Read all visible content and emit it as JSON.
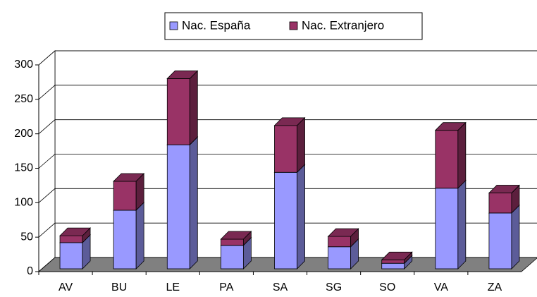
{
  "chart_data": {
    "type": "bar",
    "stacked": true,
    "three_d": true,
    "categories": [
      "AV",
      "BU",
      "LE",
      "PA",
      "SA",
      "SG",
      "SO",
      "VA",
      "ZA"
    ],
    "series": [
      {
        "name": "Nac. España",
        "color": "#9999ff",
        "values": [
          38,
          85,
          180,
          34,
          140,
          32,
          8,
          117,
          81
        ]
      },
      {
        "name": "Nac. Extranjero",
        "color": "#993366",
        "values": [
          10,
          42,
          96,
          9,
          68,
          15,
          5,
          84,
          29
        ]
      }
    ],
    "ylim": [
      0,
      300
    ],
    "yticks": [
      0,
      50,
      100,
      150,
      200,
      250,
      300
    ],
    "grid": true,
    "legend": "top"
  }
}
